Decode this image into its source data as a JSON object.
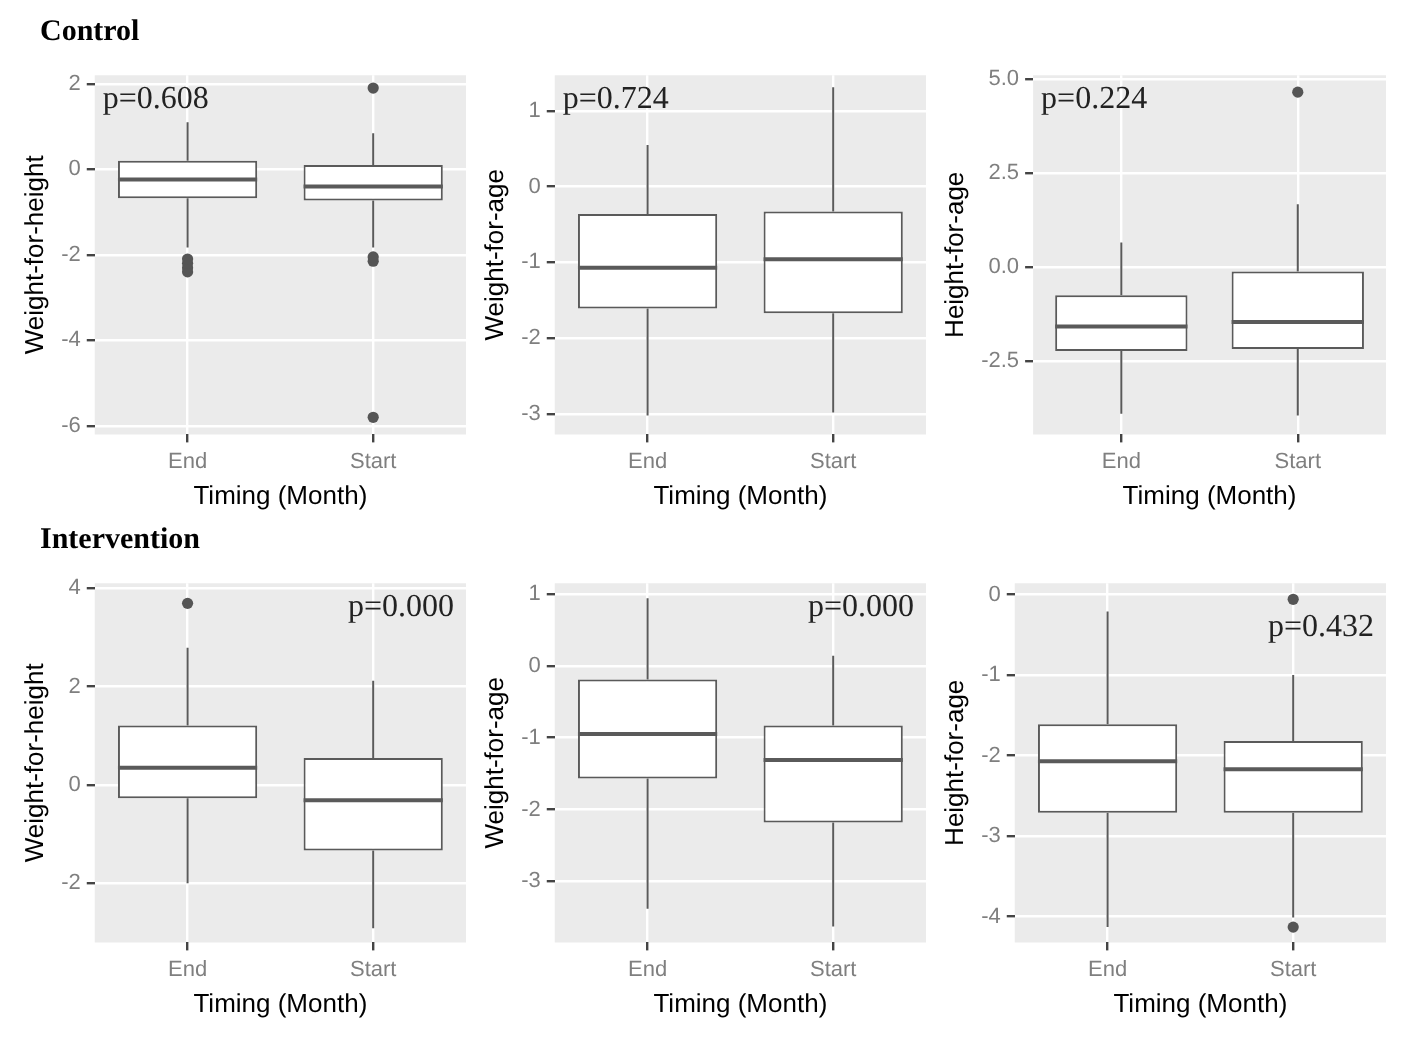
{
  "chart_data": [
    {
      "type": "box",
      "title": "Control",
      "xlabel": "Timing (Month)",
      "ylabel": "Weight-for-height",
      "categories": [
        "End",
        "Start"
      ],
      "ylim": [
        -6.2,
        2.2
      ],
      "yticks": [
        -6,
        -4,
        -2,
        0,
        2
      ],
      "grid": true,
      "annotations": [
        "p=0.608"
      ],
      "boxes": [
        {
          "low": -1.83,
          "q1": -0.68,
          "median": -0.24,
          "q3": 0.2,
          "high": 1.1,
          "outliers": [
            -2.1,
            -2.2,
            -2.3,
            -2.4
          ]
        },
        {
          "low": -1.83,
          "q1": -0.73,
          "median": -0.4,
          "q3": 0.1,
          "high": 0.84,
          "outliers": [
            1.9,
            -2.05,
            -2.15,
            -5.8
          ]
        }
      ]
    },
    {
      "type": "box",
      "xlabel": "Timing (Month)",
      "ylabel": "Weight-for-age",
      "categories": [
        "End",
        "Start"
      ],
      "ylim": [
        -3.27,
        1.47
      ],
      "yticks": [
        -3,
        -2,
        -1,
        0,
        1
      ],
      "grid": true,
      "annotations": [
        "p=0.724"
      ],
      "boxes": [
        {
          "low": -3.02,
          "q1": -1.61,
          "median": -1.07,
          "q3": -0.36,
          "high": 0.55
        },
        {
          "low": -2.98,
          "q1": -1.67,
          "median": -0.96,
          "q3": -0.33,
          "high": 1.31
        }
      ]
    },
    {
      "type": "box",
      "xlabel": "Timing (Month)",
      "ylabel": "Height-for-age",
      "categories": [
        "End",
        "Start"
      ],
      "ylim": [
        -4.45,
        5.1
      ],
      "yticks": [
        {
          "value": -2.5,
          "label": "-2.5"
        },
        {
          "value": 0,
          "label": "0.0"
        },
        {
          "value": 2.5,
          "label": "2.5"
        },
        {
          "value": 5,
          "label": "5.0"
        }
      ],
      "grid": true,
      "annotations": [
        "p=0.224"
      ],
      "boxes": [
        {
          "low": -3.9,
          "q1": -2.23,
          "median": -1.58,
          "q3": -0.75,
          "high": 0.65
        },
        {
          "low": -3.95,
          "q1": -2.18,
          "median": -1.46,
          "q3": -0.12,
          "high": 1.67,
          "outliers": [
            4.65
          ]
        }
      ]
    },
    {
      "type": "box",
      "title": "Intervention",
      "xlabel": "Timing (Month)",
      "ylabel": "Weight-for-height",
      "categories": [
        "End",
        "Start"
      ],
      "ylim": [
        -3.2,
        4.1
      ],
      "yticks": [
        -2,
        0,
        2,
        4
      ],
      "grid": true,
      "annotations": [
        "p=0.000"
      ],
      "boxes": [
        {
          "low": -2.0,
          "q1": -0.27,
          "median": 0.35,
          "q3": 1.21,
          "high": 2.79,
          "outliers": [
            3.69
          ]
        },
        {
          "low": -2.91,
          "q1": -1.33,
          "median": -0.31,
          "q3": 0.55,
          "high": 2.12
        }
      ]
    },
    {
      "type": "box",
      "xlabel": "Timing (Month)",
      "ylabel": "Weight-for-age",
      "categories": [
        "End",
        "Start"
      ],
      "ylim": [
        -3.85,
        1.15
      ],
      "yticks": [
        -3,
        -2,
        -1,
        0,
        1
      ],
      "grid": true,
      "annotations": [
        "p=0.000"
      ],
      "boxes": [
        {
          "low": -3.38,
          "q1": -1.57,
          "median": -0.95,
          "q3": -0.19,
          "high": 0.94
        },
        {
          "low": -3.63,
          "q1": -2.18,
          "median": -1.31,
          "q3": -0.83,
          "high": 0.14
        }
      ]
    },
    {
      "type": "box",
      "xlabel": "Timing (Month)",
      "ylabel": "Height-for-age",
      "categories": [
        "End",
        "Start"
      ],
      "ylim": [
        -4.32,
        0.14
      ],
      "yticks": [
        -4,
        -3,
        -2,
        -1,
        0
      ],
      "grid": true,
      "annotations": [
        "p=0.432"
      ],
      "boxes": [
        {
          "low": -4.13,
          "q1": -2.71,
          "median": -2.07,
          "q3": -1.61,
          "high": -0.21
        },
        {
          "low": -4.01,
          "q1": -2.71,
          "median": -2.17,
          "q3": -1.82,
          "high": -1.0,
          "outliers": [
            -0.06,
            -4.13
          ]
        }
      ]
    }
  ]
}
